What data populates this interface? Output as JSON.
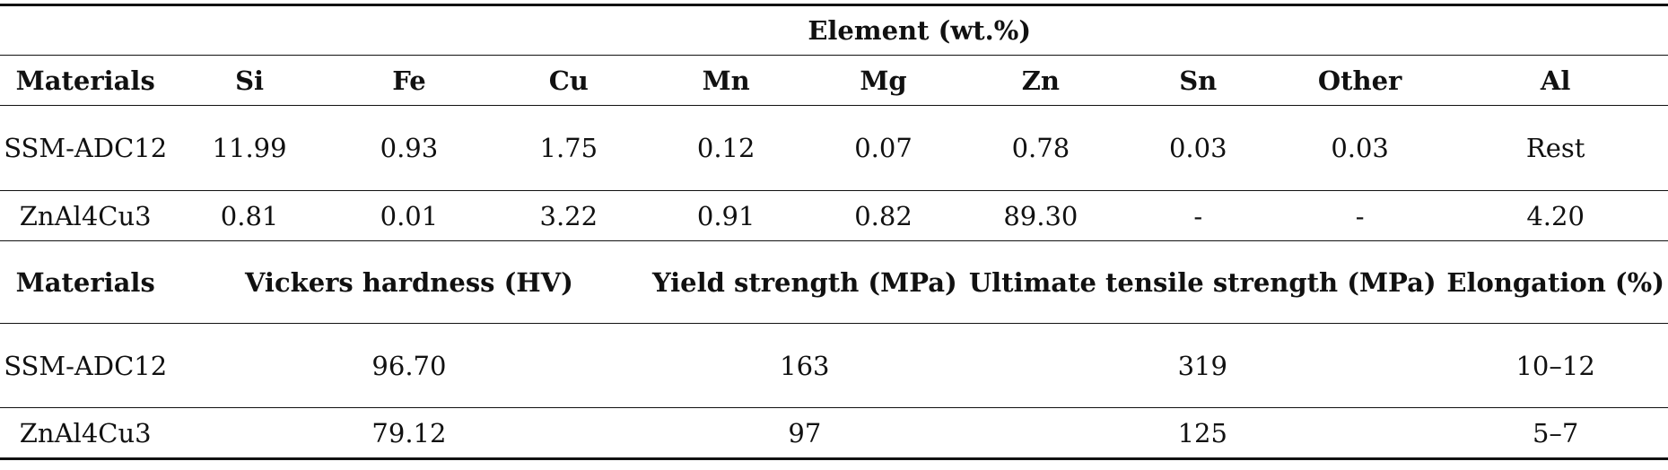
{
  "table": {
    "group_title": "Element (wt.%)",
    "composition_header": [
      "Materials",
      "Si",
      "Fe",
      "Cu",
      "Mn",
      "Mg",
      "Zn",
      "Sn",
      "Other",
      "Al"
    ],
    "composition_rows": [
      {
        "material": "SSM-ADC12",
        "values": [
          "11.99",
          "0.93",
          "1.75",
          "0.12",
          "0.07",
          "0.78",
          "0.03",
          "0.03",
          "Rest"
        ]
      },
      {
        "material": "ZnAl4Cu3",
        "values": [
          "0.81",
          "0.01",
          "3.22",
          "0.91",
          "0.82",
          "89.30",
          "-",
          "-",
          "4.20"
        ]
      }
    ],
    "properties_header": {
      "materials": "Materials",
      "hardness": "Vickers hardness (HV)",
      "yield": "Yield strength (MPa)",
      "uts": "Ultimate tensile strength (MPa)",
      "elongation": "Elongation (%)"
    },
    "properties_rows": [
      {
        "material": "SSM-ADC12",
        "hardness": "96.70",
        "yield": "163",
        "uts": "319",
        "elongation": "10–12"
      },
      {
        "material": "ZnAl4Cu3",
        "hardness": "79.12",
        "yield": "97",
        "uts": "125",
        "elongation": "5–7"
      }
    ]
  }
}
